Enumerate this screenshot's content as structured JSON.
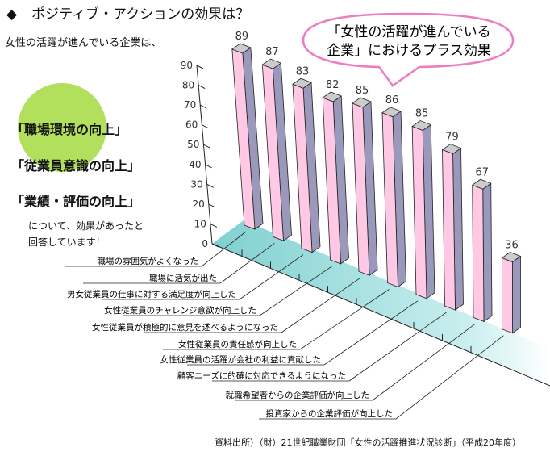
{
  "header": {
    "bullet": "◆",
    "title": "ポジティブ・アクションの効果は？"
  },
  "intro": "女性の活躍が進んでいる企業は、",
  "highlights": [
    "「職場環境の向上」",
    "「従業員意識の向上」",
    "「業績・評価の向上」"
  ],
  "note": [
    "について、効果があったと",
    "回答しています！"
  ],
  "callout": [
    "「女性の活躍が進んでいる",
    "企業」におけるプラス効果"
  ],
  "source": "資料出所）（財）21世紀職業財団「女性の活躍推進状況診断」（平成20年度）",
  "colors": {
    "bar_front": "#ffc8e4",
    "bar_side": "#9a98bb",
    "bar_top": "#cccccc",
    "floor": "#7fd0d0",
    "circle": "#b3e05c",
    "callout_border": "#f07cc0"
  },
  "chart_data": {
    "type": "bar",
    "style": "3d",
    "categories": [
      "職場の雰囲気がよくなった",
      "職場に活気が出た",
      "男女従業員の仕事に対する満足度が向上した",
      "女性従業員のチャレンジ意欲が向上した",
      "女性従業員が積極的に意見を述べるようになった",
      "女性従業員の責任感が向上した",
      "女性従業員の活躍が会社の利益に貢献した",
      "顧客ニーズに的確に対応できるようになった",
      "就職希望者からの企業評価が向上した",
      "投資家からの企業評価が向上した"
    ],
    "values": [
      89,
      87,
      83,
      82,
      85,
      86,
      85,
      79,
      67,
      36
    ],
    "yticks": [
      0,
      10,
      20,
      30,
      40,
      50,
      60,
      70,
      80,
      90
    ],
    "ylim": [
      0,
      90
    ],
    "grid": false
  }
}
